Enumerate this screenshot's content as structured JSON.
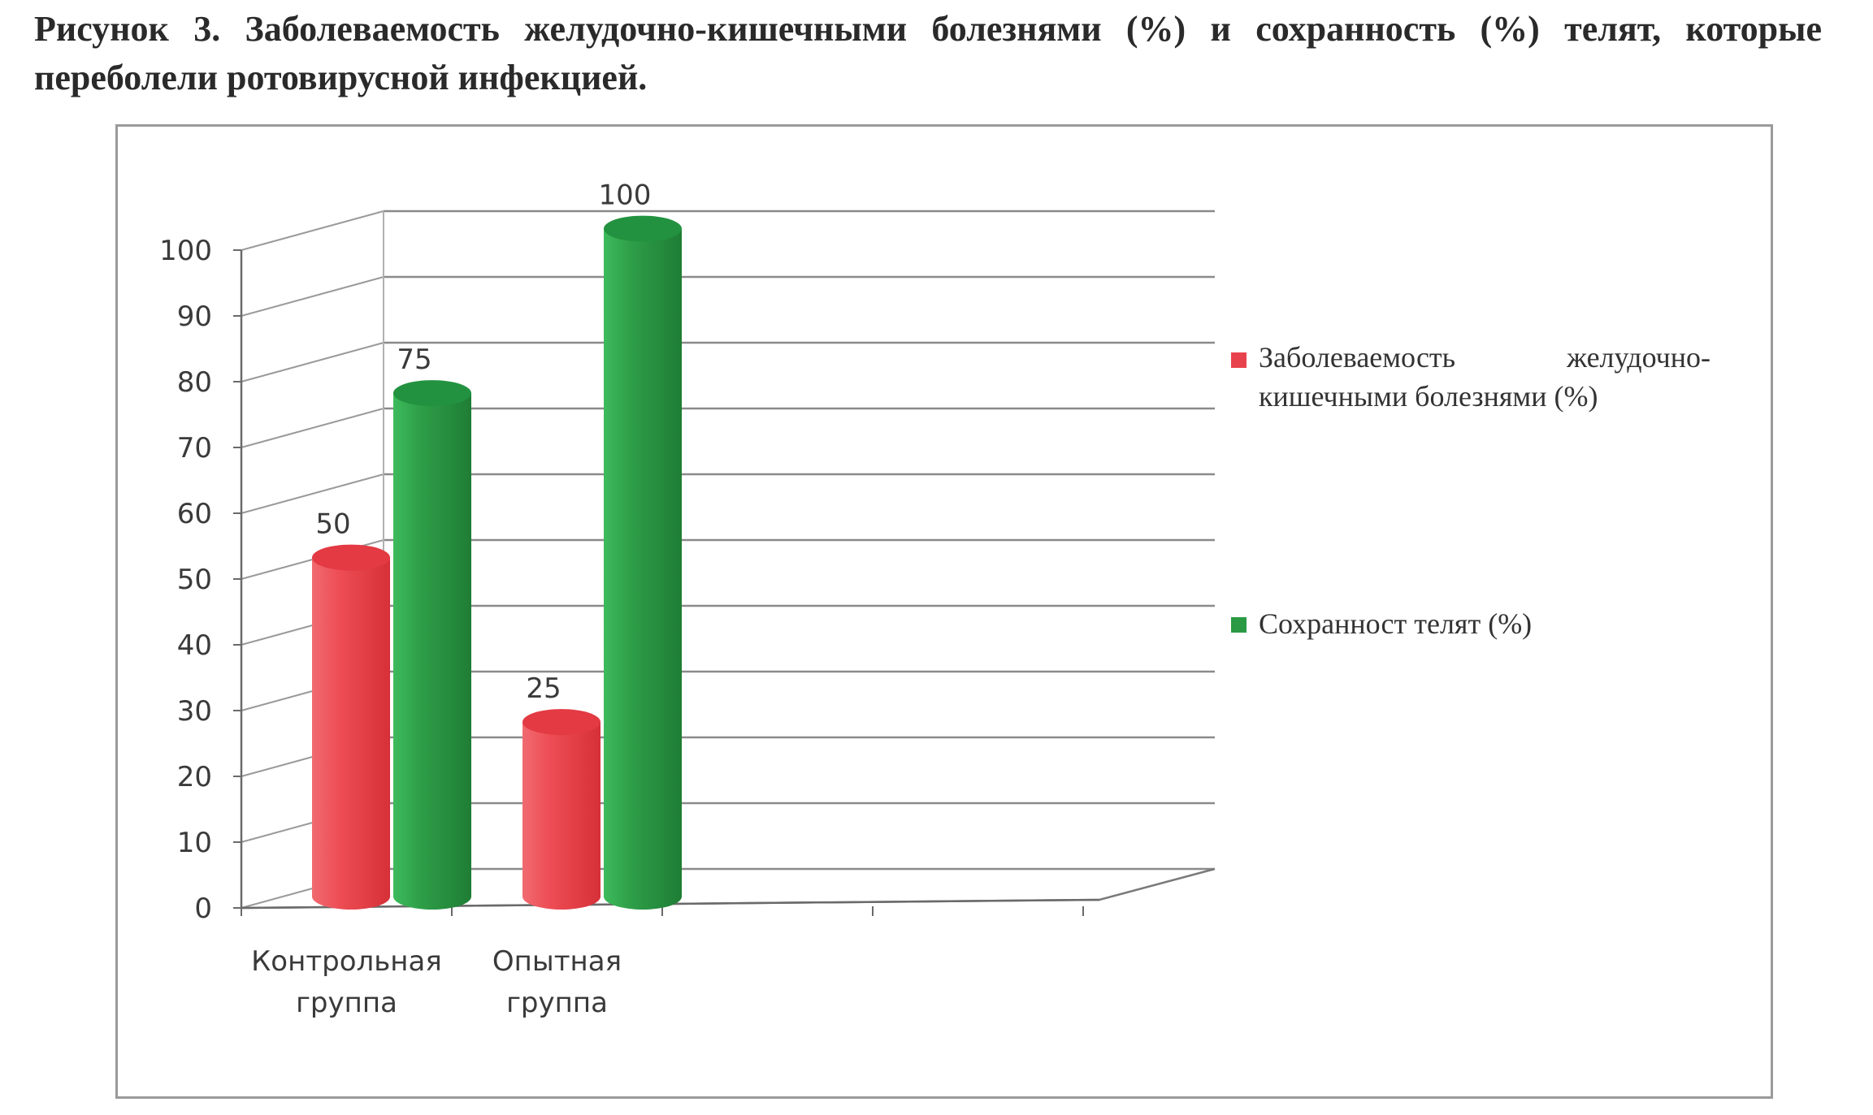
{
  "caption": "Рисунок 3.  Заболеваемость желудочно-кишечными болезнями (%) и сохранность (%) телят, которые переболели ротовирусной инфекцией.",
  "chart_data": {
    "type": "bar",
    "style": "3d-cylinder",
    "categories": [
      "Контрольная группа",
      "Опытная группа"
    ],
    "category_label_lines": [
      [
        "Контрольная",
        "группа"
      ],
      [
        "Опытная",
        "группа"
      ]
    ],
    "series": [
      {
        "name": "Заболеваемость желудочно-кишечными болезнями (%)",
        "values": [
          50,
          25
        ],
        "color": "#e8434c"
      },
      {
        "name": "Сохранност телят (%)",
        "values": [
          75,
          100
        ],
        "color": "#2a9a44"
      }
    ],
    "yticks": [
      0,
      10,
      20,
      30,
      40,
      50,
      60,
      70,
      80,
      90,
      100
    ],
    "ylim": [
      0,
      100
    ],
    "grid": true,
    "legend_position": "right",
    "data_labels": true
  }
}
